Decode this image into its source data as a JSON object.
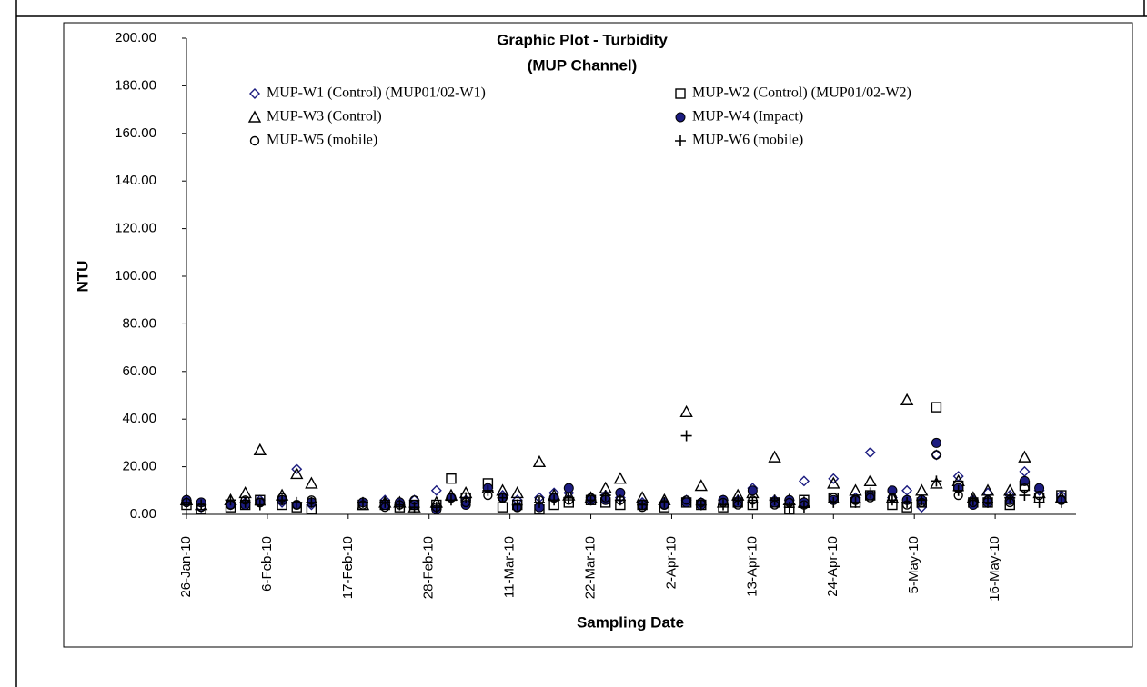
{
  "chart_data": {
    "type": "scatter",
    "title": "Graphic Plot - Turbidity",
    "subtitle": "(MUP Channel)",
    "x_label": "Sampling Date",
    "y_label": "NTU",
    "x": [
      "2010-01-26",
      "2010-01-28",
      "2010-02-01",
      "2010-02-03",
      "2010-02-05",
      "2010-02-08",
      "2010-02-10",
      "2010-02-12",
      "2010-02-19",
      "2010-02-22",
      "2010-02-24",
      "2010-02-26",
      "2010-03-01",
      "2010-03-03",
      "2010-03-05",
      "2010-03-08",
      "2010-03-10",
      "2010-03-12",
      "2010-03-15",
      "2010-03-17",
      "2010-03-19",
      "2010-03-22",
      "2010-03-24",
      "2010-03-26",
      "2010-03-29",
      "2010-04-01",
      "2010-04-04",
      "2010-04-06",
      "2010-04-09",
      "2010-04-11",
      "2010-04-13",
      "2010-04-16",
      "2010-04-18",
      "2010-04-20",
      "2010-04-24",
      "2010-04-27",
      "2010-04-29",
      "2010-05-02",
      "2010-05-04",
      "2010-05-06",
      "2010-05-08",
      "2010-05-11",
      "2010-05-13",
      "2010-05-15",
      "2010-05-18",
      "2010-05-20",
      "2010-05-22",
      "2010-05-25"
    ],
    "series": [
      {
        "name": "MUP-W1 (Control) (MUP01/02-W1)",
        "color": "#1c1c80",
        "marker": "diamond",
        "values": [
          5,
          3,
          4,
          5,
          6,
          5,
          19,
          4,
          5,
          6,
          5,
          6,
          10,
          7,
          6,
          11,
          8,
          6,
          7,
          9,
          9,
          7,
          8,
          7,
          5,
          5,
          6,
          5,
          6,
          6,
          11,
          6,
          6,
          14,
          15,
          7,
          26,
          7,
          10,
          3,
          25,
          16,
          6,
          9,
          8,
          18,
          10,
          8
        ]
      },
      {
        "name": "MUP-W2 (Control) (MUP01/02-W2)",
        "color": "#000000",
        "marker": "square",
        "values": [
          4,
          2,
          3,
          4,
          6,
          4,
          3,
          2,
          4,
          4,
          3,
          4,
          4,
          15,
          7,
          13,
          3,
          4,
          2,
          4,
          5,
          6,
          5,
          4,
          4,
          3,
          5,
          4,
          3,
          5,
          4,
          5,
          2,
          6,
          7,
          5,
          8,
          4,
          3,
          5,
          45,
          12,
          5,
          5,
          4,
          12,
          7,
          8
        ]
      },
      {
        "name": "MUP-W3 (Control)",
        "color": "#000000",
        "marker": "triangle",
        "values": [
          6,
          4,
          6,
          9,
          27,
          8,
          17,
          13,
          4,
          5,
          5,
          3,
          5,
          8,
          9,
          11,
          10,
          9,
          22,
          8,
          8,
          7,
          11,
          15,
          7,
          6,
          43,
          12,
          5,
          8,
          9,
          24,
          6,
          5,
          13,
          10,
          14,
          7,
          48,
          10,
          13,
          14,
          7,
          10,
          10,
          24,
          9,
          7
        ]
      },
      {
        "name": "MUP-W4 (Impact)",
        "color": "#1c1c80",
        "marker": "filled-circle",
        "values": [
          6,
          5,
          4,
          4,
          5,
          6,
          4,
          5,
          5,
          4,
          5,
          4,
          2,
          7,
          4,
          11,
          7,
          3,
          3,
          7,
          11,
          6,
          6,
          9,
          4,
          4,
          5,
          4,
          6,
          5,
          10,
          5,
          6,
          5,
          6,
          6,
          8,
          10,
          6,
          6,
          30,
          11,
          4,
          5,
          6,
          14,
          11,
          6
        ]
      },
      {
        "name": "MUP-W5 (mobile)",
        "color": "#000000",
        "marker": "circle",
        "values": [
          5,
          3,
          4,
          6,
          5,
          7,
          4,
          6,
          4,
          3,
          4,
          6,
          3,
          7,
          5,
          8,
          7,
          3,
          6,
          7,
          6,
          7,
          7,
          6,
          3,
          4,
          6,
          5,
          5,
          4,
          6,
          4,
          5,
          4,
          7,
          6,
          7,
          7,
          4,
          5,
          25,
          8,
          5,
          6,
          5,
          11,
          8,
          6
        ]
      },
      {
        "name": "MUP-W6 (mobile)",
        "color": "#000000",
        "marker": "plus",
        "values": [
          5,
          4,
          6,
          5,
          4,
          6,
          5,
          5,
          5,
          5,
          4,
          3,
          3,
          6,
          7,
          10,
          7,
          4,
          5,
          6,
          7,
          6,
          8,
          6,
          4,
          5,
          33,
          4,
          4,
          6,
          5,
          6,
          3,
          3,
          5,
          5,
          9,
          6,
          5,
          6,
          14,
          10,
          6,
          5,
          7,
          8,
          5,
          5
        ]
      }
    ],
    "xlim": [
      "2010-01-26",
      "2010-05-27"
    ],
    "xticks": [
      {
        "value": "2010-01-26",
        "label": "26-Jan-10"
      },
      {
        "value": "2010-02-06",
        "label": "6-Feb-10"
      },
      {
        "value": "2010-02-17",
        "label": "17-Feb-10"
      },
      {
        "value": "2010-02-28",
        "label": "28-Feb-10"
      },
      {
        "value": "2010-03-11",
        "label": "11-Mar-10"
      },
      {
        "value": "2010-03-22",
        "label": "22-Mar-10"
      },
      {
        "value": "2010-04-02",
        "label": "2-Apr-10"
      },
      {
        "value": "2010-04-13",
        "label": "13-Apr-10"
      },
      {
        "value": "2010-04-24",
        "label": "24-Apr-10"
      },
      {
        "value": "2010-05-05",
        "label": "5-May-10"
      },
      {
        "value": "2010-05-16",
        "label": "16-May-10"
      }
    ],
    "ylim": [
      0,
      200
    ],
    "yticks": [
      {
        "value": 0,
        "label": "0.00"
      },
      {
        "value": 20,
        "label": "20.00"
      },
      {
        "value": 40,
        "label": "40.00"
      },
      {
        "value": 60,
        "label": "60.00"
      },
      {
        "value": 80,
        "label": "80.00"
      },
      {
        "value": 100,
        "label": "100.00"
      },
      {
        "value": 120,
        "label": "120.00"
      },
      {
        "value": 140,
        "label": "140.00"
      },
      {
        "value": 160,
        "label": "160.00"
      },
      {
        "value": 180,
        "label": "180.00"
      },
      {
        "value": 200,
        "label": "200.00"
      }
    ],
    "grid": false
  }
}
